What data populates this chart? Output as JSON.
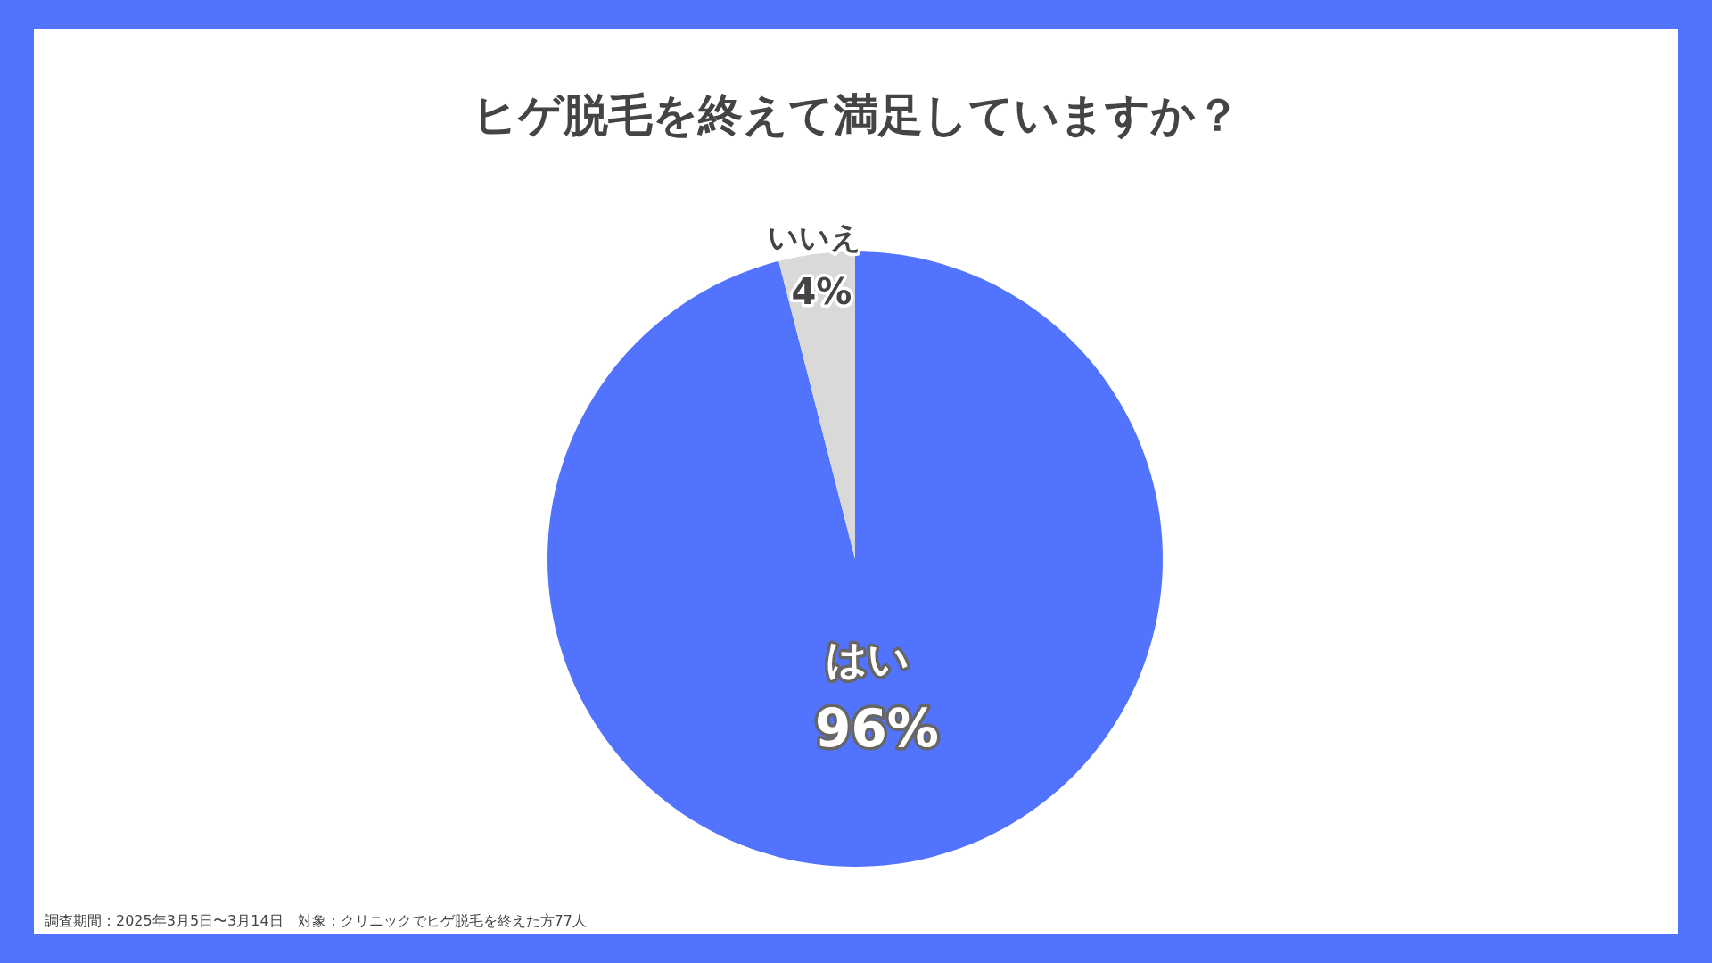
{
  "chart_data": {
    "type": "pie",
    "title": "ヒゲ脱毛を終えて満足していますか？",
    "categories": [
      "はい",
      "いいえ"
    ],
    "values": [
      96,
      4
    ],
    "colors": [
      "#5173fd",
      "#d9d9d9"
    ],
    "value_labels": [
      "96%",
      "4%"
    ],
    "legend": false,
    "annotations": [
      "調査期間：2025年3月5日〜3月14日　対象：クリニックでヒゲ脱毛を終えた方77人"
    ]
  }
}
